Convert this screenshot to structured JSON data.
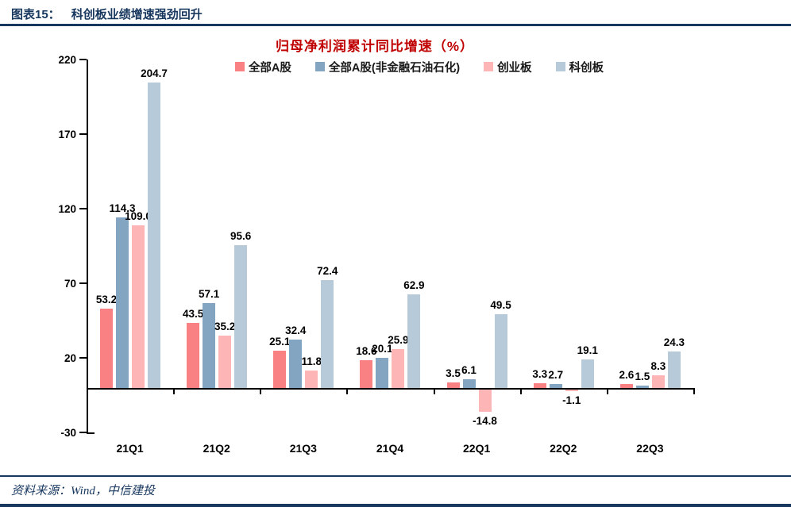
{
  "page": {
    "header": {
      "label": "图表15：",
      "title": "科创板业绩增速强劲回升"
    },
    "source": "资料来源：Wind，中信建投"
  },
  "colors": {
    "navy": "#17375E",
    "title_red": "#C00000",
    "axis_black": "#000000"
  },
  "chart_data": {
    "type": "bar",
    "title": "归母净利润累计同比增速（%）",
    "categories": [
      "21Q1",
      "21Q2",
      "21Q3",
      "21Q4",
      "22Q1",
      "22Q2",
      "22Q3"
    ],
    "series": [
      {
        "name": "全部A股",
        "color": "#F98183",
        "values": [
          53.2,
          43.5,
          25.1,
          18.6,
          3.5,
          3.3,
          2.6
        ]
      },
      {
        "name": "全部A股(非金融石油石化)",
        "color": "#83A5C1",
        "values": [
          114.3,
          57.1,
          32.4,
          20.1,
          6.1,
          2.7,
          1.5
        ]
      },
      {
        "name": "创业板",
        "color": "#FDB5B5",
        "values": [
          109.0,
          35.2,
          11.8,
          25.9,
          -14.8,
          -1.1,
          8.3
        ]
      },
      {
        "name": "科创板",
        "color": "#B7CAD9",
        "values": [
          204.7,
          95.6,
          72.4,
          62.9,
          49.5,
          19.1,
          24.3
        ]
      }
    ],
    "yticks": [
      220,
      170,
      120,
      70,
      20,
      -30
    ],
    "ylim": [
      -30,
      220
    ],
    "xlabel": "",
    "ylabel": "",
    "legend_position": "top",
    "grid": false,
    "value_labels": "one_decimal_above_bars"
  }
}
